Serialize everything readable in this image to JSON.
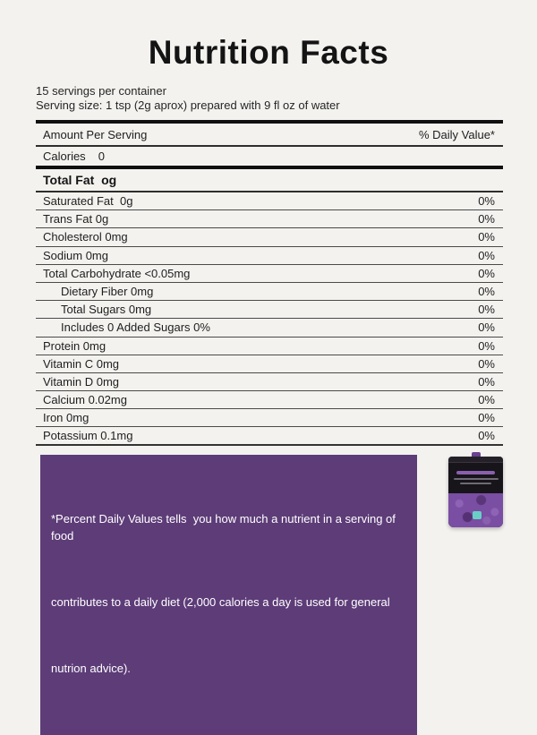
{
  "colors": {
    "background": "#f3f2ef",
    "text": "#1e1e1e",
    "thick_rule": "#101010",
    "separator": "#4a4a4a",
    "footnote_bg": "#5d3c78",
    "footnote_text": "#ffffff",
    "pouch_black": "#17141a",
    "pouch_purple": "#7a4ea3",
    "pouch_badge_teal": "#69cfc6"
  },
  "label": {
    "title": "Nutrition Facts",
    "servings_per_container": "15 servings per container",
    "serving_size": "Serving size: 1 tsp (2g aprox) prepared with 9 fl oz of water",
    "header": {
      "amount": "Amount Per Serving",
      "daily_value": "% Daily Value*"
    },
    "calories": {
      "name": "Calories",
      "value": "0"
    },
    "total_fat": "Total Fat  og",
    "rows": [
      {
        "label": "Saturated Fat  0g",
        "value": "0%",
        "indent": false
      },
      {
        "label": "Trans Fat 0g",
        "value": "0%",
        "indent": false
      },
      {
        "label": "Cholesterol 0mg",
        "value": "0%",
        "indent": false
      },
      {
        "label": "Sodium 0mg",
        "value": "0%",
        "indent": false
      },
      {
        "label": "Total Carbohydrate <0.05mg",
        "value": "0%",
        "indent": false
      },
      {
        "label": "Dietary Fiber 0mg",
        "value": "0%",
        "indent": true
      },
      {
        "label": "Total Sugars 0mg",
        "value": "0%",
        "indent": true
      },
      {
        "label": "Includes 0 Added Sugars 0%",
        "value": "0%",
        "indent": true
      },
      {
        "label": "Protein 0mg",
        "value": "0%",
        "indent": false
      },
      {
        "label": "Vitamin C 0mg",
        "value": "0%",
        "indent": false
      },
      {
        "label": "Vitamin D 0mg",
        "value": "0%",
        "indent": false
      },
      {
        "label": "Calcium 0.02mg",
        "value": "0%",
        "indent": false
      },
      {
        "label": "Iron 0mg",
        "value": "0%",
        "indent": false
      },
      {
        "label": "Potassium 0.1mg",
        "value": "0%",
        "indent": false
      }
    ],
    "footnote_lines": [
      "*Percent Daily Values tells  you how much a nutrient in a serving of food",
      "contributes to a daily diet (2,000 calories a day is used for general",
      "nutrion advice)."
    ],
    "product_image": "purple-pouch-product-photo"
  }
}
